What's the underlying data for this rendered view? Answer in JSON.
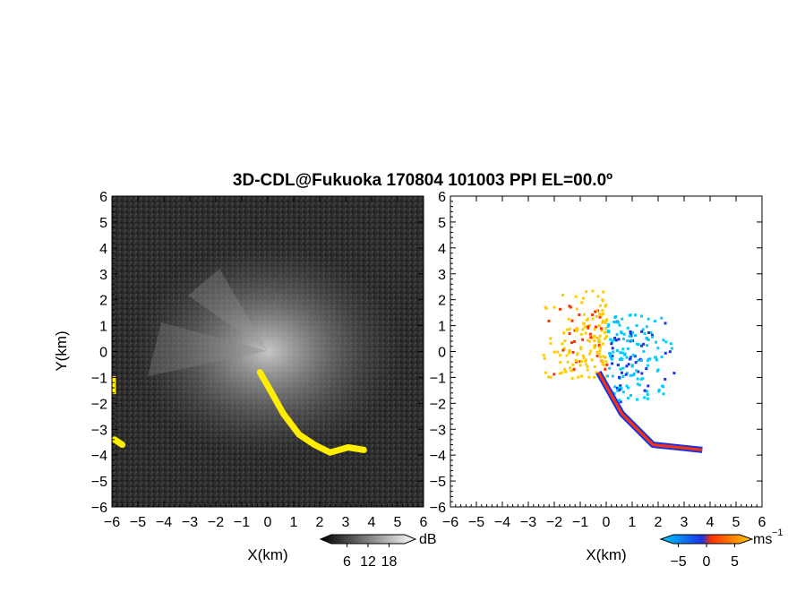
{
  "title": "3D-CDL@Fukuoka 170804 101003 PPI EL=00.0º",
  "colors": {
    "background_left": "#2b2b2b",
    "echo_strong": "#ffee00",
    "vel_negative": "#00ccff",
    "vel_zero": "#1a33e6",
    "vel_positive": "#ff3300",
    "vel_high": "#ffcc00"
  },
  "chart_data": [
    {
      "type": "heatmap",
      "name": "snr_ppi",
      "xlabel": "X(km)",
      "ylabel": "Y(km)",
      "xlim": [
        -6,
        6
      ],
      "ylim": [
        -6,
        6
      ],
      "xticks": [
        "−6",
        "−5",
        "−4",
        "−3",
        "−2",
        "−1",
        "0",
        "1",
        "2",
        "3",
        "4",
        "5",
        "6"
      ],
      "yticks": [
        "−6",
        "−5",
        "−4",
        "−3",
        "−2",
        "−1",
        "0",
        "1",
        "2",
        "3",
        "4",
        "5",
        "6"
      ],
      "colorbar": {
        "unit": "dB",
        "ticks": [
          6,
          12,
          18
        ],
        "range": [
          0,
          24
        ]
      },
      "strong_echo_features": [
        {
          "description": "filament SE of radar",
          "points": [
            [
              -0.3,
              -0.8
            ],
            [
              0.1,
              -1.5
            ],
            [
              0.6,
              -2.4
            ],
            [
              1.2,
              -3.2
            ],
            [
              1.8,
              -3.6
            ],
            [
              2.4,
              -3.9
            ],
            [
              3.1,
              -3.7
            ],
            [
              3.7,
              -3.8
            ]
          ]
        },
        {
          "description": "west edge patch",
          "points": [
            [
              -5.9,
              -3.4
            ],
            [
              -5.6,
              -3.6
            ]
          ]
        },
        {
          "description": "west edge blip",
          "points": [
            [
              -5.95,
              -1.3
            ]
          ]
        }
      ]
    },
    {
      "type": "heatmap",
      "name": "radial_velocity_ppi",
      "xlabel": "X(km)",
      "ylabel": "",
      "xlim": [
        -6,
        6
      ],
      "ylim": [
        -6,
        6
      ],
      "xticks": [
        "−6",
        "−5",
        "−4",
        "−3",
        "−2",
        "−1",
        "0",
        "1",
        "2",
        "3",
        "4",
        "5",
        "6"
      ],
      "yticks": [
        "−6",
        "−5",
        "−4",
        "−3",
        "−2",
        "−1",
        "0",
        "1",
        "2",
        "3",
        "4",
        "5",
        "6"
      ],
      "colorbar": {
        "unit": "ms",
        "unit_exp": "−1",
        "ticks": [
          "−5",
          "0",
          "5"
        ],
        "range": [
          -7,
          7
        ]
      },
      "features": [
        {
          "description": "positive velocity sector NW",
          "x_range": [
            -2.5,
            0
          ],
          "y_range": [
            -1,
            2.5
          ],
          "velocity": 4
        },
        {
          "description": "negative velocity sector E",
          "x_range": [
            0,
            3
          ],
          "y_range": [
            -2,
            1.5
          ],
          "velocity": -5
        },
        {
          "description": "mixed filament SE",
          "points": [
            [
              -0.3,
              -0.8
            ],
            [
              0.6,
              -2.4
            ],
            [
              1.8,
              -3.6
            ],
            [
              3.7,
              -3.8
            ]
          ]
        }
      ]
    }
  ]
}
